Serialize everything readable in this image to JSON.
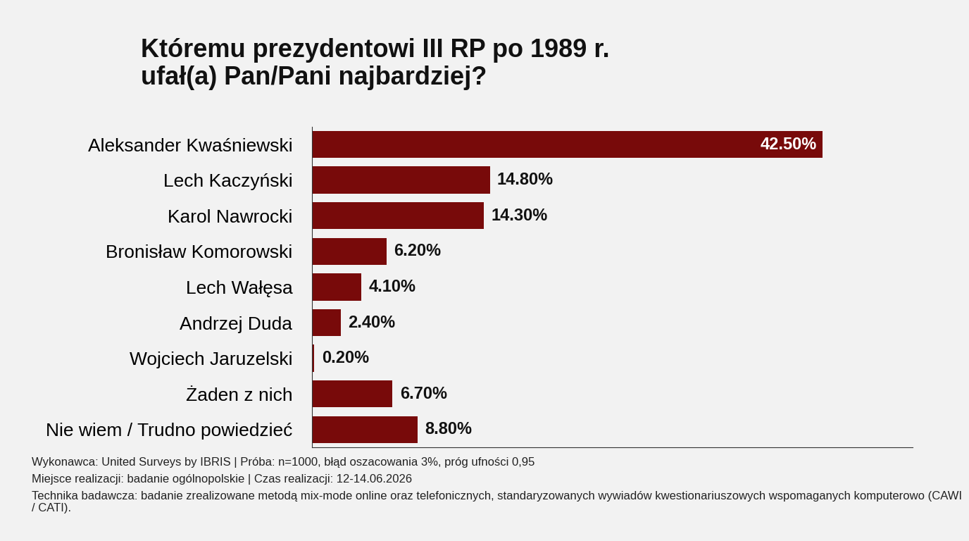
{
  "chart_data": {
    "type": "bar",
    "orientation": "horizontal",
    "title": "Któremu prezydentowi III RP po 1989 r.\nufał(a) Pan/Pani najbardziej?",
    "categories": [
      "Aleksander Kwaśniewski",
      "Lech Kaczyński",
      "Karol Nawrocki",
      "Bronisław Komorowski",
      "Lech Wałęsa",
      "Andrzej Duda",
      "Wojciech Jaruzelski",
      "Żaden z nich",
      "Nie wiem / Trudno powiedzieć"
    ],
    "values": [
      42.5,
      14.8,
      14.3,
      6.2,
      4.1,
      2.4,
      0.2,
      6.7,
      8.8
    ],
    "value_labels": [
      "42.50%",
      "14.80%",
      "14.30%",
      "6.20%",
      "4.10%",
      "2.40%",
      "0.20%",
      "6.70%",
      "8.80%"
    ],
    "color": "#780a0a",
    "xlim": [
      0,
      50
    ],
    "xticks": [],
    "data_labels": true,
    "tick_labels": "y",
    "grid": false,
    "annotations": [
      "Wykonawca: United Surveys by IBRIS | Próba: n=1000, błąd oszacowania 3%, próg ufności 0,95",
      "Miejsce realizacji: badanie ogólnopolskie | Czas realizacji: 12-14.06.2026",
      "Technika badawcza: badanie zrealizowane metodą mix-mode online oraz telefonicznych, standaryzowanych wywiadów kwestionariuszowych wspomaganych komputerowo (CAWI / CATI)."
    ]
  }
}
